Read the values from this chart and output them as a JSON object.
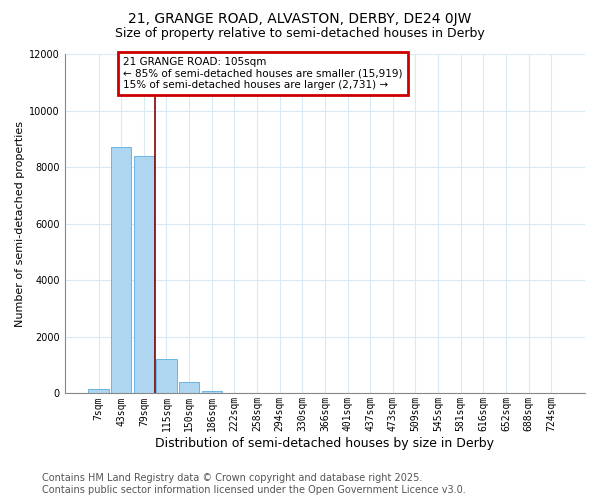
{
  "title": "21, GRANGE ROAD, ALVASTON, DERBY, DE24 0JW",
  "subtitle": "Size of property relative to semi-detached houses in Derby",
  "xlabel": "Distribution of semi-detached houses by size in Derby",
  "ylabel": "Number of semi-detached properties",
  "categories": [
    "7sqm",
    "43sqm",
    "79sqm",
    "115sqm",
    "150sqm",
    "186sqm",
    "222sqm",
    "258sqm",
    "294sqm",
    "330sqm",
    "366sqm",
    "401sqm",
    "437sqm",
    "473sqm",
    "509sqm",
    "545sqm",
    "581sqm",
    "616sqm",
    "652sqm",
    "688sqm",
    "724sqm"
  ],
  "values": [
    150,
    8700,
    8400,
    1200,
    400,
    100,
    0,
    0,
    0,
    0,
    0,
    0,
    0,
    0,
    0,
    0,
    0,
    0,
    0,
    0,
    0
  ],
  "bar_color": "#AED6F1",
  "bar_edge_color": "#5DADE2",
  "ylim": [
    0,
    12000
  ],
  "yticks": [
    0,
    2000,
    4000,
    6000,
    8000,
    10000,
    12000
  ],
  "redline_x": 2.5,
  "annotation_text_line1": "21 GRANGE ROAD: 105sqm",
  "annotation_text_line2": "← 85% of semi-detached houses are smaller (15,919)",
  "annotation_text_line3": "15% of semi-detached houses are larger (2,731) →",
  "annotation_box_color": "#FFFFFF",
  "annotation_box_edge_color": "#CC0000",
  "footer_line1": "Contains HM Land Registry data © Crown copyright and database right 2025.",
  "footer_line2": "Contains public sector information licensed under the Open Government Licence v3.0.",
  "background_color": "#FFFFFF",
  "grid_color": "#DAEAF5",
  "title_fontsize": 10,
  "subtitle_fontsize": 9,
  "xlabel_fontsize": 9,
  "ylabel_fontsize": 8,
  "tick_fontsize": 7,
  "annotation_fontsize": 7.5,
  "footer_fontsize": 7
}
